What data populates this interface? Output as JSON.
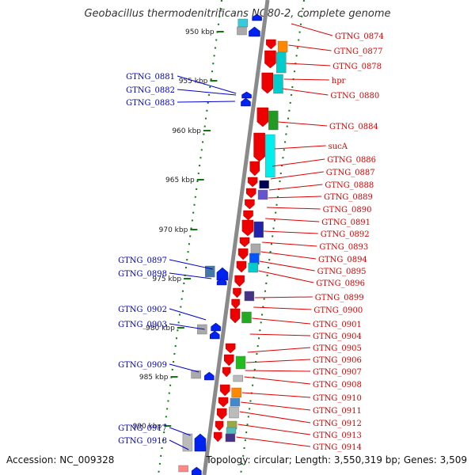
{
  "title": "Geobacillus thermodenitrificans NG80-2, complete genome",
  "footer": {
    "accession": "Accession: NC_009328",
    "info": "Topology: circular; Length: 3,550,319 bp; Genes: 3,509"
  },
  "colors": {
    "reverse_label": "#0000cc",
    "forward_label": "#dd0000",
    "reverse_arrow": "#0022ee",
    "forward_arrow": "#ee0000",
    "backbone": "#8a8a8a",
    "ruler": "#117711"
  },
  "kbp_markers": [
    "950 kbp",
    "955 kbp",
    "960 kbp",
    "965 kbp",
    "970 kbp",
    "975 kbp",
    "980 kbp",
    "985 kbp",
    "990 kbp"
  ],
  "reverse_genes": [
    "GTNG_0881",
    "GTNG_0882",
    "GTNG_0883",
    "GTNG_0897",
    "GTNG_0898",
    "GTNG_0902",
    "GTNG_0903",
    "GTNG_0909",
    "GTNG_0917",
    "GTNG_0918"
  ],
  "forward_genes": [
    "GTNG_0874",
    "GTNG_0877",
    "GTNG_0878",
    "hpr",
    "GTNG_0880",
    "GTNG_0884",
    "sucA",
    "GTNG_0886",
    "GTNG_0887",
    "GTNG_0888",
    "GTNG_0889",
    "GTNG_0890",
    "GTNG_0891",
    "GTNG_0892",
    "GTNG_0893",
    "GTNG_0894",
    "GTNG_0895",
    "GTNG_0896",
    "GTNG_0899",
    "GTNG_0900",
    "GTNG_0901",
    "GTNG_0904",
    "GTNG_0905",
    "GTNG_0906",
    "GTNG_0907",
    "GTNG_0908",
    "GTNG_0910",
    "GTNG_0911",
    "GTNG_0912",
    "GTNG_0913",
    "GTNG_0914"
  ]
}
